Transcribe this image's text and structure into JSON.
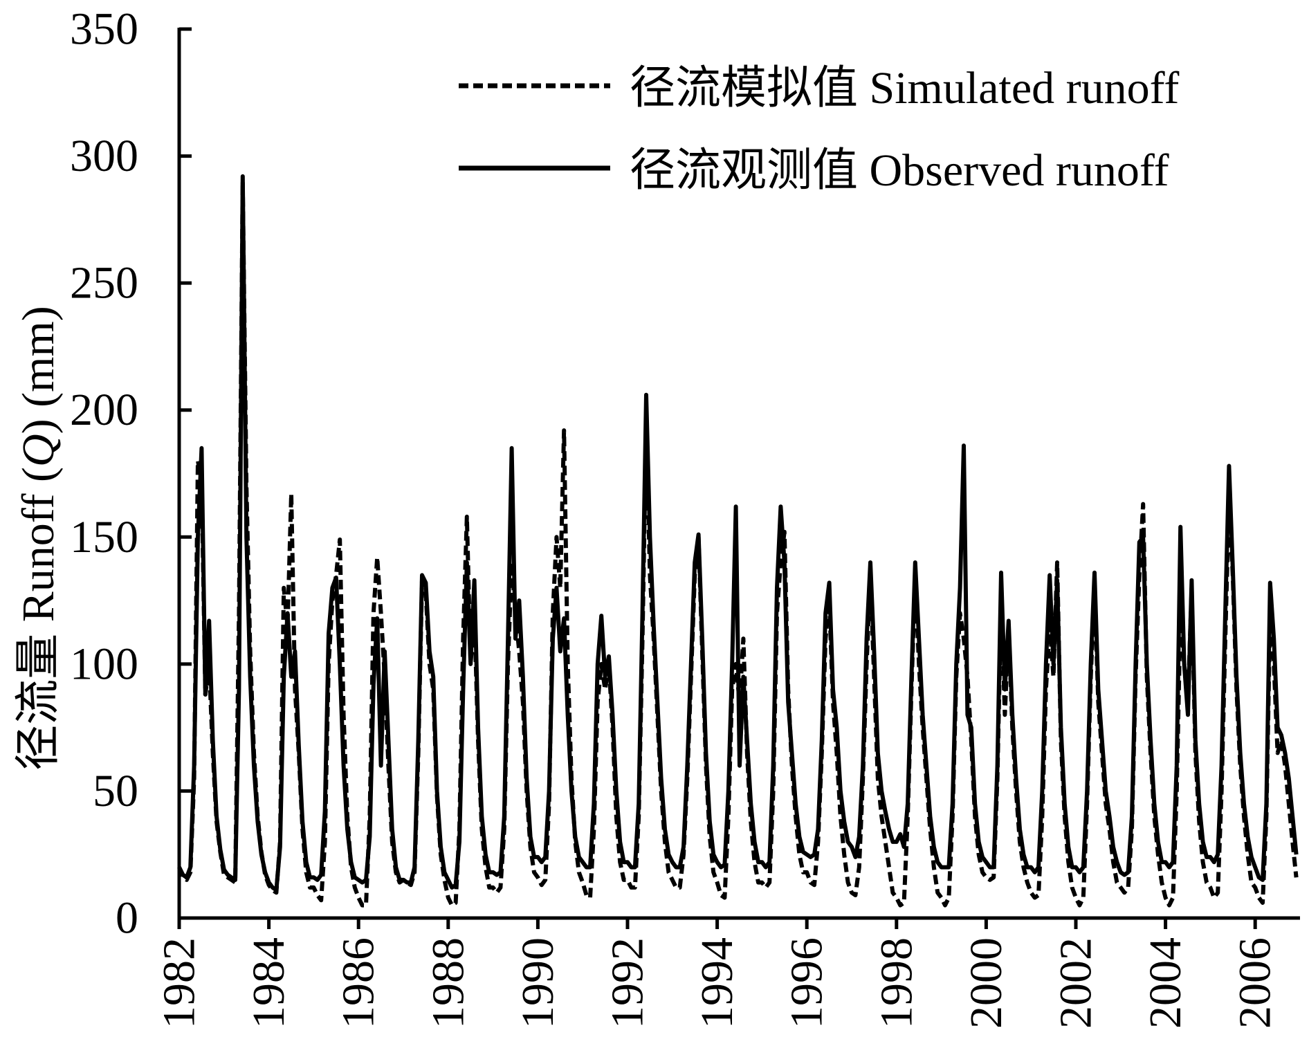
{
  "chart_data": {
    "type": "line",
    "title": "",
    "xlabel": "",
    "ylabel": "径流量 Runoff (Q) (mm)",
    "xlim": [
      1982,
      2007
    ],
    "ylim": [
      0,
      350
    ],
    "yticks": [
      0,
      50,
      100,
      150,
      200,
      250,
      300,
      350
    ],
    "xticks": [
      "1982",
      "1984",
      "1986",
      "1988",
      "1990",
      "1992",
      "1994",
      "1996",
      "1998",
      "2000",
      "2002",
      "2004",
      "2006"
    ],
    "grid": false,
    "legend_position": "top-right",
    "x": [
      "1982-01",
      "1982-02",
      "1982-03",
      "1982-04",
      "1982-05",
      "1982-06",
      "1982-07",
      "1982-08",
      "1982-09",
      "1982-10",
      "1982-11",
      "1982-12",
      "1983-01",
      "1983-02",
      "1983-03",
      "1983-04",
      "1983-05",
      "1983-06",
      "1983-07",
      "1983-08",
      "1983-09",
      "1983-10",
      "1983-11",
      "1983-12",
      "1984-01",
      "1984-02",
      "1984-03",
      "1984-04",
      "1984-05",
      "1984-06",
      "1984-07",
      "1984-08",
      "1984-09",
      "1984-10",
      "1984-11",
      "1984-12",
      "1985-01",
      "1985-02",
      "1985-03",
      "1985-04",
      "1985-05",
      "1985-06",
      "1985-07",
      "1985-08",
      "1985-09",
      "1985-10",
      "1985-11",
      "1985-12",
      "1986-01",
      "1986-02",
      "1986-03",
      "1986-04",
      "1986-05",
      "1986-06",
      "1986-07",
      "1986-08",
      "1986-09",
      "1986-10",
      "1986-11",
      "1986-12",
      "1987-01",
      "1987-02",
      "1987-03",
      "1987-04",
      "1987-05",
      "1987-06",
      "1987-07",
      "1987-08",
      "1987-09",
      "1987-10",
      "1987-11",
      "1987-12",
      "1988-01",
      "1988-02",
      "1988-03",
      "1988-04",
      "1988-05",
      "1988-06",
      "1988-07",
      "1988-08",
      "1988-09",
      "1988-10",
      "1988-11",
      "1988-12",
      "1989-01",
      "1989-02",
      "1989-03",
      "1989-04",
      "1989-05",
      "1989-06",
      "1989-07",
      "1989-08",
      "1989-09",
      "1989-10",
      "1989-11",
      "1989-12",
      "1990-01",
      "1990-02",
      "1990-03",
      "1990-04",
      "1990-05",
      "1990-06",
      "1990-07",
      "1990-08",
      "1990-09",
      "1990-10",
      "1990-11",
      "1990-12",
      "1991-01",
      "1991-02",
      "1991-03",
      "1991-04",
      "1991-05",
      "1991-06",
      "1991-07",
      "1991-08",
      "1991-09",
      "1991-10",
      "1991-11",
      "1991-12",
      "1992-01",
      "1992-02",
      "1992-03",
      "1992-04",
      "1992-05",
      "1992-06",
      "1992-07",
      "1992-08",
      "1992-09",
      "1992-10",
      "1992-11",
      "1992-12",
      "1993-01",
      "1993-02",
      "1993-03",
      "1993-04",
      "1993-05",
      "1993-06",
      "1993-07",
      "1993-08",
      "1993-09",
      "1993-10",
      "1993-11",
      "1993-12",
      "1994-01",
      "1994-02",
      "1994-03",
      "1994-04",
      "1994-05",
      "1994-06",
      "1994-07",
      "1994-08",
      "1994-09",
      "1994-10",
      "1994-11",
      "1994-12",
      "1995-01",
      "1995-02",
      "1995-03",
      "1995-04",
      "1995-05",
      "1995-06",
      "1995-07",
      "1995-08",
      "1995-09",
      "1995-10",
      "1995-11",
      "1995-12",
      "1996-01",
      "1996-02",
      "1996-03",
      "1996-04",
      "1996-05",
      "1996-06",
      "1996-07",
      "1996-08",
      "1996-09",
      "1996-10",
      "1996-11",
      "1996-12",
      "1997-01",
      "1997-02",
      "1997-03",
      "1997-04",
      "1997-05",
      "1997-06",
      "1997-07",
      "1997-08",
      "1997-09",
      "1997-10",
      "1997-11",
      "1997-12",
      "1998-01",
      "1998-02",
      "1998-03",
      "1998-04",
      "1998-05",
      "1998-06",
      "1998-07",
      "1998-08",
      "1998-09",
      "1998-10",
      "1998-11",
      "1998-12",
      "1999-01",
      "1999-02",
      "1999-03",
      "1999-04",
      "1999-05",
      "1999-06",
      "1999-07",
      "1999-08",
      "1999-09",
      "1999-10",
      "1999-11",
      "1999-12",
      "2000-01",
      "2000-02",
      "2000-03",
      "2000-04",
      "2000-05",
      "2000-06",
      "2000-07",
      "2000-08",
      "2000-09",
      "2000-10",
      "2000-11",
      "2000-12",
      "2001-01",
      "2001-02",
      "2001-03",
      "2001-04",
      "2001-05",
      "2001-06",
      "2001-07",
      "2001-08",
      "2001-09",
      "2001-10",
      "2001-11",
      "2001-12",
      "2002-01",
      "2002-02",
      "2002-03",
      "2002-04",
      "2002-05",
      "2002-06",
      "2002-07",
      "2002-08",
      "2002-09",
      "2002-10",
      "2002-11",
      "2002-12",
      "2003-01",
      "2003-02",
      "2003-03",
      "2003-04",
      "2003-05",
      "2003-06",
      "2003-07",
      "2003-08",
      "2003-09",
      "2003-10",
      "2003-11",
      "2003-12",
      "2004-01",
      "2004-02",
      "2004-03",
      "2004-04",
      "2004-05",
      "2004-06",
      "2004-07",
      "2004-08",
      "2004-09",
      "2004-10",
      "2004-11",
      "2004-12",
      "2005-01",
      "2005-02",
      "2005-03",
      "2005-04",
      "2005-05",
      "2005-06",
      "2005-07",
      "2005-08",
      "2005-09",
      "2005-10",
      "2005-11",
      "2005-12",
      "2006-01",
      "2006-02",
      "2006-03",
      "2006-04",
      "2006-05",
      "2006-06",
      "2006-07",
      "2006-08",
      "2006-09",
      "2006-10",
      "2006-11",
      "2006-12"
    ],
    "series": [
      {
        "name": "径流模拟值 Simulated runoff",
        "style": "dashed",
        "color": "#000000",
        "values": [
          20,
          16,
          15,
          18,
          55,
          180,
          172,
          88,
          100,
          65,
          38,
          26,
          17,
          16,
          15,
          14,
          120,
          290,
          170,
          105,
          65,
          40,
          26,
          17,
          13,
          11,
          10,
          30,
          130,
          115,
          167,
          90,
          65,
          35,
          18,
          12,
          12,
          9,
          7,
          30,
          100,
          125,
          135,
          149,
          80,
          40,
          20,
          12,
          8,
          5,
          5,
          40,
          120,
          142,
          120,
          95,
          60,
          30,
          18,
          14,
          15,
          14,
          13,
          18,
          65,
          133,
          128,
          100,
          90,
          48,
          25,
          15,
          8,
          5,
          6,
          35,
          110,
          158,
          100,
          120,
          70,
          35,
          20,
          12,
          12,
          10,
          12,
          35,
          100,
          140,
          120,
          105,
          85,
          50,
          28,
          18,
          16,
          13,
          15,
          45,
          120,
          150,
          130,
          192,
          100,
          55,
          30,
          18,
          14,
          9,
          8,
          35,
          85,
          100,
          90,
          100,
          75,
          40,
          22,
          15,
          15,
          12,
          12,
          40,
          110,
          195,
          135,
          110,
          80,
          50,
          30,
          18,
          15,
          12,
          12,
          25,
          55,
          95,
          135,
          150,
          105,
          60,
          32,
          18,
          14,
          9,
          8,
          40,
          90,
          100,
          85,
          110,
          65,
          38,
          22,
          14,
          14,
          12,
          14,
          50,
          120,
          140,
          152,
          90,
          60,
          40,
          25,
          18,
          18,
          14,
          13,
          30,
          65,
          110,
          125,
          85,
          65,
          40,
          25,
          14,
          10,
          9,
          20,
          55,
          100,
          135,
          95,
          55,
          40,
          30,
          20,
          10,
          8,
          5,
          6,
          40,
          90,
          135,
          100,
          75,
          55,
          35,
          20,
          10,
          8,
          5,
          8,
          40,
          95,
          120,
          110,
          95,
          70,
          40,
          25,
          18,
          16,
          15,
          16,
          55,
          125,
          80,
          115,
          75,
          50,
          30,
          20,
          14,
          10,
          8,
          9,
          40,
          90,
          115,
          95,
          140,
          70,
          40,
          22,
          12,
          8,
          5,
          8,
          45,
          95,
          130,
          85,
          65,
          45,
          35,
          22,
          14,
          12,
          10,
          12,
          35,
          95,
          135,
          163,
          95,
          65,
          40,
          25,
          14,
          8,
          5,
          8,
          50,
          120,
          100,
          85,
          130,
          65,
          38,
          22,
          14,
          12,
          8,
          10,
          50,
          110,
          165,
          135,
          90,
          60,
          40,
          25,
          14,
          12,
          8,
          6,
          40,
          120,
          100,
          65,
          70,
          60,
          45,
          30,
          16
        ]
      },
      {
        "name": "径流观测值 Observed runoff",
        "style": "solid",
        "color": "#000000",
        "values": [
          20,
          17,
          16,
          20,
          60,
          150,
          185,
          88,
          117,
          70,
          40,
          27,
          19,
          17,
          16,
          15,
          90,
          292,
          150,
          95,
          60,
          38,
          25,
          18,
          14,
          12,
          11,
          28,
          95,
          120,
          95,
          105,
          68,
          38,
          22,
          16,
          16,
          15,
          17,
          42,
          112,
          130,
          134,
          100,
          60,
          35,
          22,
          16,
          15,
          14,
          15,
          32,
          92,
          118,
          60,
          105,
          70,
          35,
          20,
          15,
          15,
          14,
          14,
          20,
          70,
          135,
          132,
          105,
          95,
          50,
          28,
          18,
          15,
          12,
          13,
          30,
          90,
          140,
          100,
          133,
          75,
          40,
          25,
          18,
          18,
          17,
          18,
          40,
          110,
          185,
          110,
          125,
          95,
          55,
          32,
          24,
          24,
          22,
          24,
          50,
          110,
          130,
          105,
          118,
          80,
          50,
          32,
          24,
          22,
          20,
          20,
          45,
          100,
          119,
          95,
          103,
          80,
          50,
          30,
          22,
          22,
          20,
          20,
          45,
          120,
          206,
          150,
          115,
          85,
          55,
          35,
          25,
          22,
          20,
          20,
          28,
          60,
          100,
          140,
          151,
          110,
          65,
          38,
          25,
          22,
          20,
          21,
          50,
          100,
          162,
          60,
          95,
          70,
          45,
          30,
          22,
          22,
          20,
          22,
          60,
          130,
          162,
          140,
          85,
          65,
          45,
          32,
          26,
          25,
          24,
          25,
          35,
          70,
          120,
          132,
          90,
          75,
          50,
          38,
          30,
          28,
          24,
          32,
          60,
          110,
          140,
          105,
          65,
          50,
          42,
          35,
          30,
          30,
          33,
          28,
          45,
          95,
          140,
          110,
          80,
          60,
          40,
          28,
          22,
          20,
          20,
          20,
          45,
          100,
          130,
          186,
          80,
          75,
          45,
          30,
          24,
          22,
          20,
          20,
          60,
          136,
          90,
          117,
          80,
          55,
          35,
          25,
          20,
          20,
          18,
          20,
          50,
          100,
          135,
          100,
          133,
          75,
          45,
          28,
          20,
          20,
          18,
          20,
          50,
          100,
          136,
          90,
          70,
          50,
          40,
          28,
          22,
          18,
          17,
          18,
          40,
          100,
          148,
          150,
          100,
          70,
          45,
          30,
          22,
          22,
          20,
          22,
          60,
          154,
          100,
          80,
          133,
          70,
          45,
          30,
          24,
          24,
          22,
          25,
          60,
          120,
          178,
          138,
          95,
          65,
          45,
          32,
          24,
          20,
          16,
          15,
          45,
          132,
          110,
          75,
          72,
          65,
          55,
          40,
          25
        ]
      }
    ]
  }
}
